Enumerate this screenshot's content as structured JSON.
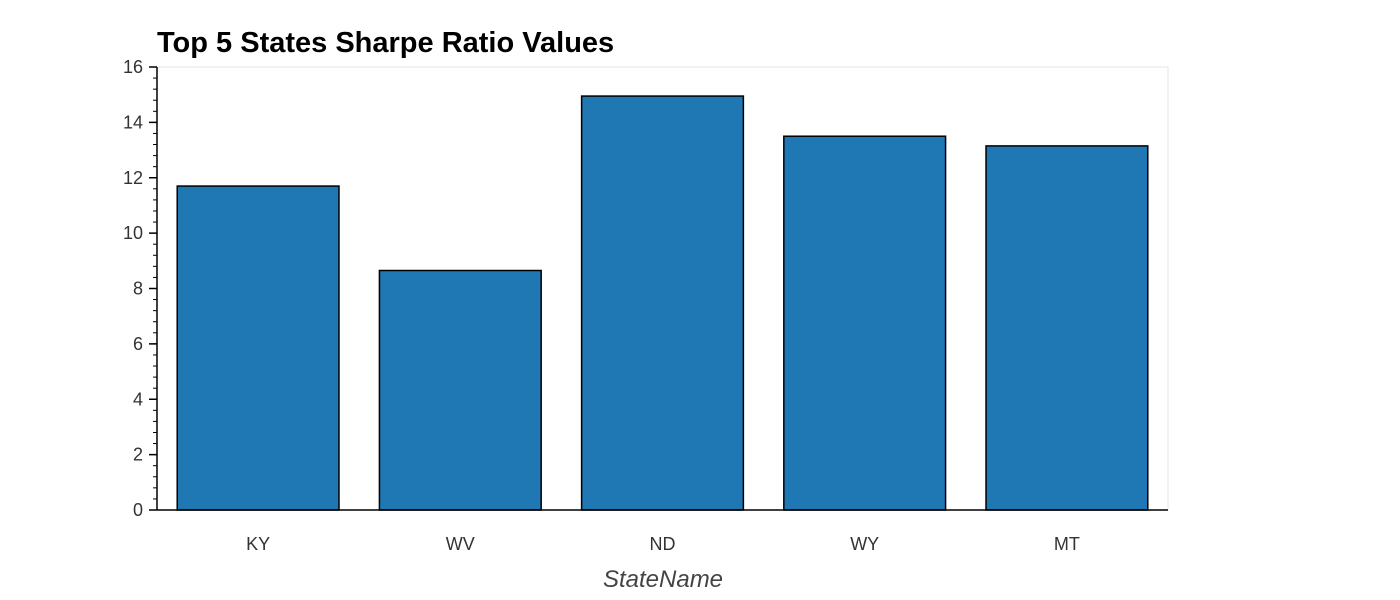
{
  "chart_data": {
    "type": "bar",
    "title": "Top 5 States Sharpe Ratio Values",
    "xlabel": "StateName",
    "ylabel": "",
    "categories": [
      "KY",
      "WV",
      "ND",
      "WY",
      "MT"
    ],
    "values": [
      11.7,
      8.65,
      14.95,
      13.5,
      13.15
    ],
    "ylim": [
      0,
      16
    ],
    "yticks": [
      0,
      2,
      4,
      6,
      8,
      10,
      12,
      14,
      16
    ],
    "ytick_labels": [
      "0",
      "2",
      "4",
      "6",
      "8",
      "10",
      "12",
      "14",
      "16"
    ],
    "grid": false,
    "legend": "none",
    "colors": {
      "bar_fill": "#1f77b4",
      "bar_stroke": "#000000",
      "frame": "#e5e5e5",
      "axis": "#000000",
      "tick_text": "#333333",
      "label_text": "#444444"
    }
  }
}
